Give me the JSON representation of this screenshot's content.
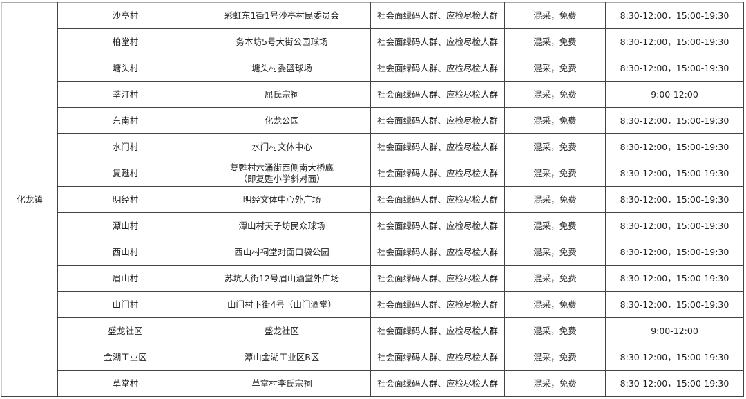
{
  "town": "化龙镇",
  "rows": [
    {
      "village": "沙亭村",
      "location": "彩虹东1街1号沙亭村民委员会",
      "crowd": "社会面绿码人群、应检尽检人群",
      "method": "混采，免费",
      "time": "8:30-12:00，15:00-19:30"
    },
    {
      "village": "柏堂村",
      "location": "务本坊5号大街公园球场",
      "crowd": "社会面绿码人群、应检尽检人群",
      "method": "混采，免费",
      "time": "8:30-12:00，15:00-19:30"
    },
    {
      "village": "塘头村",
      "location": "塘头村委篮球场",
      "crowd": "社会面绿码人群、应检尽检人群",
      "method": "混采，免费",
      "time": "8:30-12:00，15:00-19:30"
    },
    {
      "village": "莘汀村",
      "location": "屈氏宗祠",
      "crowd": "社会面绿码人群、应检尽检人群",
      "method": "混采，免费",
      "time": "9:00-12:00"
    },
    {
      "village": "东南村",
      "location": "化龙公园",
      "crowd": "社会面绿码人群、应检尽检人群",
      "method": "混采，免费",
      "time": "8:30-12:00，15:00-19:30"
    },
    {
      "village": "水门村",
      "location": "水门村文体中心",
      "crowd": "社会面绿码人群、应检尽检人群",
      "method": "混采，免费",
      "time": "8:30-12:00，15:00-19:30"
    },
    {
      "village": "复甦村",
      "location": "复甦村六涌街西侧南大桥底",
      "location2": "（即复甦小学斜对面）",
      "crowd": "社会面绿码人群、应检尽检人群",
      "method": "混采，免费",
      "time": "8:30-12:00，15:00-19:30"
    },
    {
      "village": "明经村",
      "location": "明经文体中心外广场",
      "crowd": "社会面绿码人群、应检尽检人群",
      "method": "混采，免费",
      "time": "8:30-12:00，15:00-19:30"
    },
    {
      "village": "潭山村",
      "location": "潭山村天子坊民众球场",
      "crowd": "社会面绿码人群、应检尽检人群",
      "method": "混采，免费",
      "time": "8:30-12:00，15:00-19:30"
    },
    {
      "village": "西山村",
      "location": "西山村祠堂对面口袋公园",
      "crowd": "社会面绿码人群、应检尽检人群",
      "method": "混采，免费",
      "time": "8:30-12:00，15:00-19:30"
    },
    {
      "village": "眉山村",
      "location": "苏坑大街12号眉山酒堂外广场",
      "crowd": "社会面绿码人群、应检尽检人群",
      "method": "混采，免费",
      "time": "8:30-12:00，15:00-19:30"
    },
    {
      "village": "山门村",
      "location": "山门村下街4号（山门酒堂）",
      "crowd": "社会面绿码人群、应检尽检人群",
      "method": "混采，免费",
      "time": "8:30-12:00，15:00-19:30"
    },
    {
      "village": "盛龙社区",
      "location": "盛龙社区",
      "crowd": "社会面绿码人群、应检尽检人群",
      "method": "混采，免费",
      "time": "9:00-12:00"
    },
    {
      "village": "金湖工业区",
      "location": "潭山金湖工业区B区",
      "crowd": "社会面绿码人群、应检尽检人群",
      "method": "混采，免费",
      "time": "8:30-12:00，15:00-19:30"
    },
    {
      "village": "草堂村",
      "location": "草堂村李氏宗祠",
      "crowd": "社会面绿码人群、应检尽检人群",
      "method": "混采，免费",
      "time": "8:30-12:00，15:00-19:30"
    }
  ]
}
